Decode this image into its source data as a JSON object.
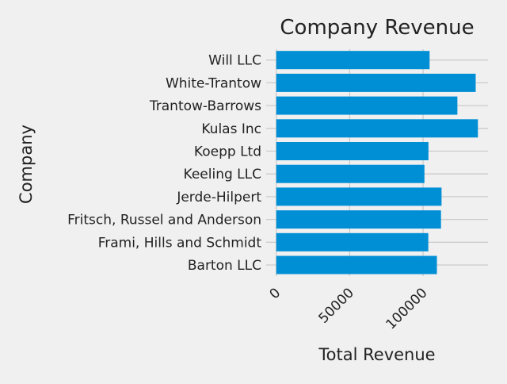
{
  "chart_data": {
    "type": "bar",
    "orientation": "horizontal",
    "title": "Company Revenue",
    "xlabel": "Total Revenue",
    "ylabel": "Company",
    "categories": [
      "Barton LLC",
      "Frami, Hills and Schmidt",
      "Fritsch, Russel and Anderson",
      "Jerde-Hilpert",
      "Keeling LLC",
      "Koepp Ltd",
      "Kulas Inc",
      "Trantow-Barrows",
      "White-Trantow",
      "Will LLC"
    ],
    "values": [
      109438.5,
      103569.59,
      112214.71,
      112591.43,
      100934.3,
      103660.54,
      137351.96,
      123381.38,
      135841.99,
      104437.6
    ],
    "xticks": [
      0,
      50000,
      100000
    ],
    "xtick_labels": [
      "0",
      "50000",
      "100000"
    ],
    "xlim": [
      -6868,
      144220
    ],
    "grid": true,
    "style": "fivethirtyeight",
    "bar_color": "#008fd5",
    "background": "#f0f0f0",
    "grid_color": "#cbcbcb"
  }
}
